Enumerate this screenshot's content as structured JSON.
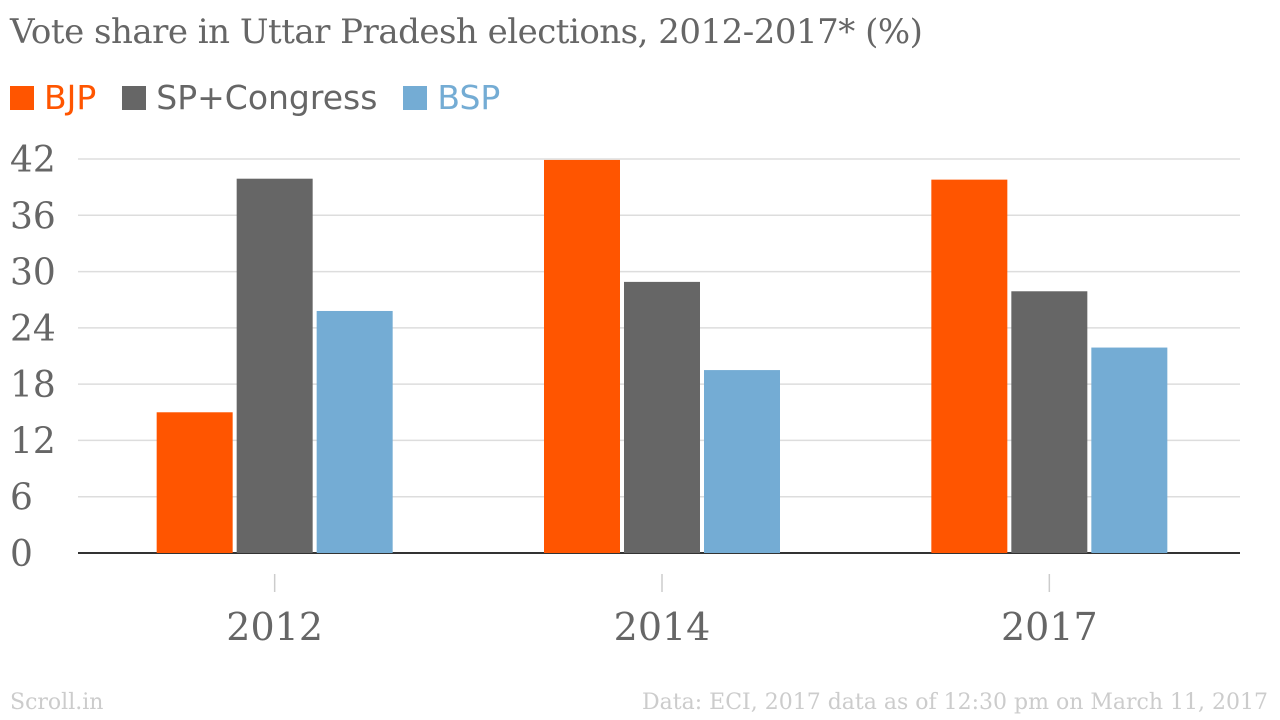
{
  "chart_data": {
    "type": "bar",
    "title": "Vote share in Uttar Pradesh elections, 2012-2017* (%)",
    "categories": [
      "2012",
      "2014",
      "2017"
    ],
    "series": [
      {
        "name": "BJP",
        "color": "#ff5500",
        "values": [
          15.0,
          41.9,
          39.8
        ]
      },
      {
        "name": "SP+Congress",
        "color": "#666666",
        "values": [
          39.9,
          28.9,
          27.9
        ]
      },
      {
        "name": "BSP",
        "color": "#74acd4",
        "values": [
          25.8,
          19.5,
          21.9
        ]
      }
    ],
    "ylim": [
      0,
      42
    ],
    "yticks": [
      0,
      6,
      12,
      18,
      24,
      30,
      36,
      42
    ],
    "grid": true,
    "legend_position": "top-left"
  },
  "footer": {
    "source_brand": "Scroll.in",
    "note": "Data: ECI, 2017 data as of 12:30 pm on March 11, 2017"
  }
}
